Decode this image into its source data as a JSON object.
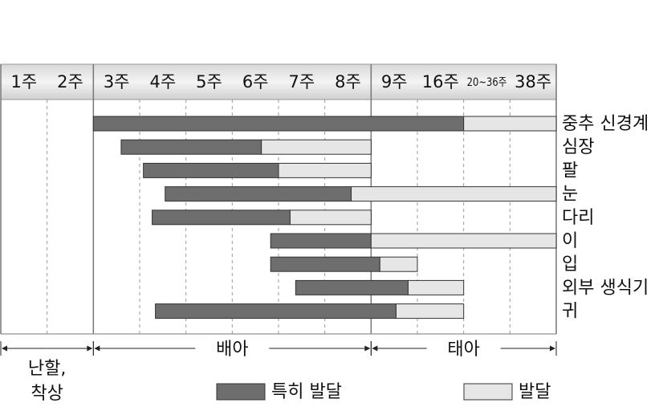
{
  "chart_data": {
    "type": "range-bar",
    "columns": [
      "1주",
      "2주",
      "3주",
      "4주",
      "5주",
      "6주",
      "7주",
      "8주",
      "9주",
      "16주",
      "20~36주",
      "38주"
    ],
    "xlim": [
      0,
      12
    ],
    "xticks": [
      0,
      1,
      2,
      3,
      4,
      5,
      6,
      7,
      8,
      9,
      10,
      11,
      12
    ],
    "categories": [
      "중추 신경계",
      "심장",
      "팔",
      "눈",
      "다리",
      "이",
      "입",
      "외부 생식기",
      "귀"
    ],
    "series": [
      {
        "name": "특히 발달",
        "color": "#6e6e6e",
        "values": [
          [
            2,
            10
          ],
          [
            2.6,
            5.63
          ],
          [
            3.08,
            6
          ],
          [
            3.55,
            7.57
          ],
          [
            3.27,
            6.25
          ],
          [
            5.83,
            8
          ],
          [
            5.83,
            8.19
          ],
          [
            6.37,
            8.8
          ],
          [
            3.34,
            8.54
          ]
        ]
      },
      {
        "name": "발달",
        "color": "#e6e6e6",
        "values": [
          [
            10,
            12
          ],
          [
            5.63,
            8
          ],
          [
            6,
            8
          ],
          [
            7.57,
            12
          ],
          [
            6.25,
            8
          ],
          [
            8,
            12
          ],
          [
            8.19,
            9
          ],
          [
            8.8,
            10
          ],
          [
            8.54,
            10
          ]
        ]
      }
    ],
    "periods": [
      {
        "lines": [
          "난할,",
          "착상"
        ],
        "range": [
          0,
          2
        ]
      },
      {
        "lines": [
          "배아"
        ],
        "range": [
          2,
          8
        ]
      },
      {
        "lines": [
          "태아"
        ],
        "range": [
          8,
          12
        ]
      }
    ]
  }
}
